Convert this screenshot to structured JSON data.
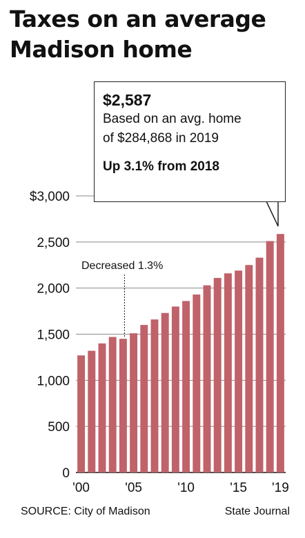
{
  "title": "Taxes on an average Madison home",
  "callout": {
    "value": "$2,587",
    "line1": "Based on an avg. home",
    "line2": "of $284,868 in 2019",
    "change": "Up 3.1% from 2018"
  },
  "annotation": "Decreased 1.3%",
  "source": "SOURCE: City of Madison",
  "credit": "State Journal",
  "colors": {
    "bar": "#c0626a",
    "grid": "#8a8a8a",
    "text": "#111111"
  },
  "chart_data": {
    "type": "bar",
    "title": "Taxes on an average Madison home",
    "xlabel": "",
    "ylabel": "",
    "categories": [
      "2000",
      "2001",
      "2002",
      "2003",
      "2004",
      "2005",
      "2006",
      "2007",
      "2008",
      "2009",
      "2010",
      "2011",
      "2012",
      "2013",
      "2014",
      "2015",
      "2016",
      "2017",
      "2018",
      "2019"
    ],
    "x_tick_labels": [
      "'00",
      "'05",
      "'10",
      "'15",
      "'19"
    ],
    "y_tick_labels": [
      "$3,000",
      "2,500",
      "2,000",
      "1,500",
      "1,000",
      "500",
      "0"
    ],
    "values": [
      1270,
      1320,
      1400,
      1470,
      1450,
      1510,
      1600,
      1660,
      1730,
      1800,
      1860,
      1930,
      2030,
      2110,
      2160,
      2190,
      2250,
      2330,
      2510,
      2587
    ],
    "ylim": [
      0,
      3000
    ],
    "grid": true
  }
}
